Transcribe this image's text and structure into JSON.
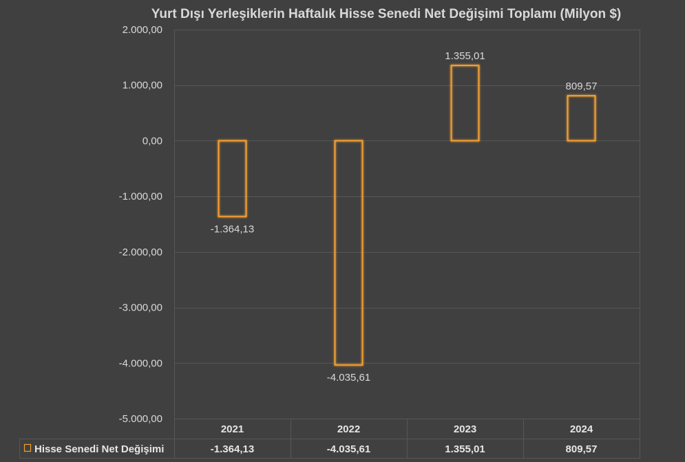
{
  "chart_data": {
    "type": "bar",
    "title": "Yurt Dışı Yerleşiklerin Haftalık Hisse Senedi Net Değişimi Toplamı (Milyon $)",
    "categories": [
      "2021",
      "2022",
      "2023",
      "2024"
    ],
    "series": [
      {
        "name": "Hisse Senedi Net Değişimi",
        "values": [
          -1364.13,
          -4035.61,
          1355.01,
          809.57
        ],
        "labels": [
          "-1.364,13",
          "-4.035,61",
          "1.355,01",
          "809,57"
        ],
        "color": "#f5a030"
      }
    ],
    "ylim": [
      -5000,
      2000
    ],
    "yticks": [
      2000,
      1000,
      0,
      -1000,
      -2000,
      -3000,
      -4000,
      -5000
    ],
    "ytick_labels": [
      "2.000,00",
      "1.000,00",
      "0,00",
      "-1.000,00",
      "-2.000,00",
      "-3.000,00",
      "-4.000,00",
      "-5.000,00"
    ],
    "grid": true,
    "legend": "data-table",
    "xlabel": "",
    "ylabel": ""
  },
  "colors": {
    "background": "#404040",
    "grid": "#575757",
    "bar_outline": "#f5a030",
    "text": "#d9d9d9"
  }
}
